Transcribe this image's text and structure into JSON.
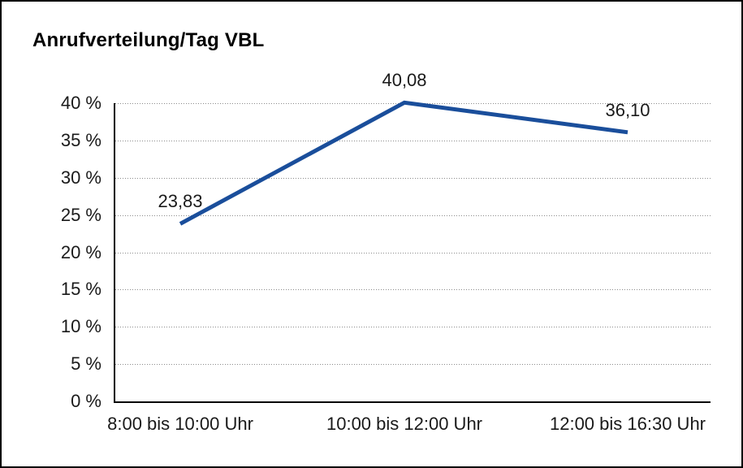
{
  "chart_data": {
    "type": "line",
    "title": "Anrufverteilung/Tag VBL",
    "categories": [
      "8:00 bis 10:00 Uhr",
      "10:00 bis 12:00 Uhr",
      "12:00 bis 16:30 Uhr"
    ],
    "values": [
      23.83,
      40.08,
      36.1
    ],
    "value_labels": [
      "23,83",
      "40,08",
      "36,10"
    ],
    "xlabel": "",
    "ylabel": "",
    "ylim": [
      0,
      40
    ],
    "ytick_step": 5,
    "yticks": [
      "40 %",
      "35 %",
      "30 %",
      "25 %",
      "20 %",
      "15 %",
      "10 %",
      "5 %",
      "0 %"
    ],
    "grid": "horizontal-dotted",
    "legend": "none"
  },
  "colors": {
    "line": "#1a4e9b",
    "grid": "#8c8c8c",
    "axis": "#000000",
    "text": "#1a1a1a",
    "border": "#000000",
    "background": "#ffffff"
  }
}
